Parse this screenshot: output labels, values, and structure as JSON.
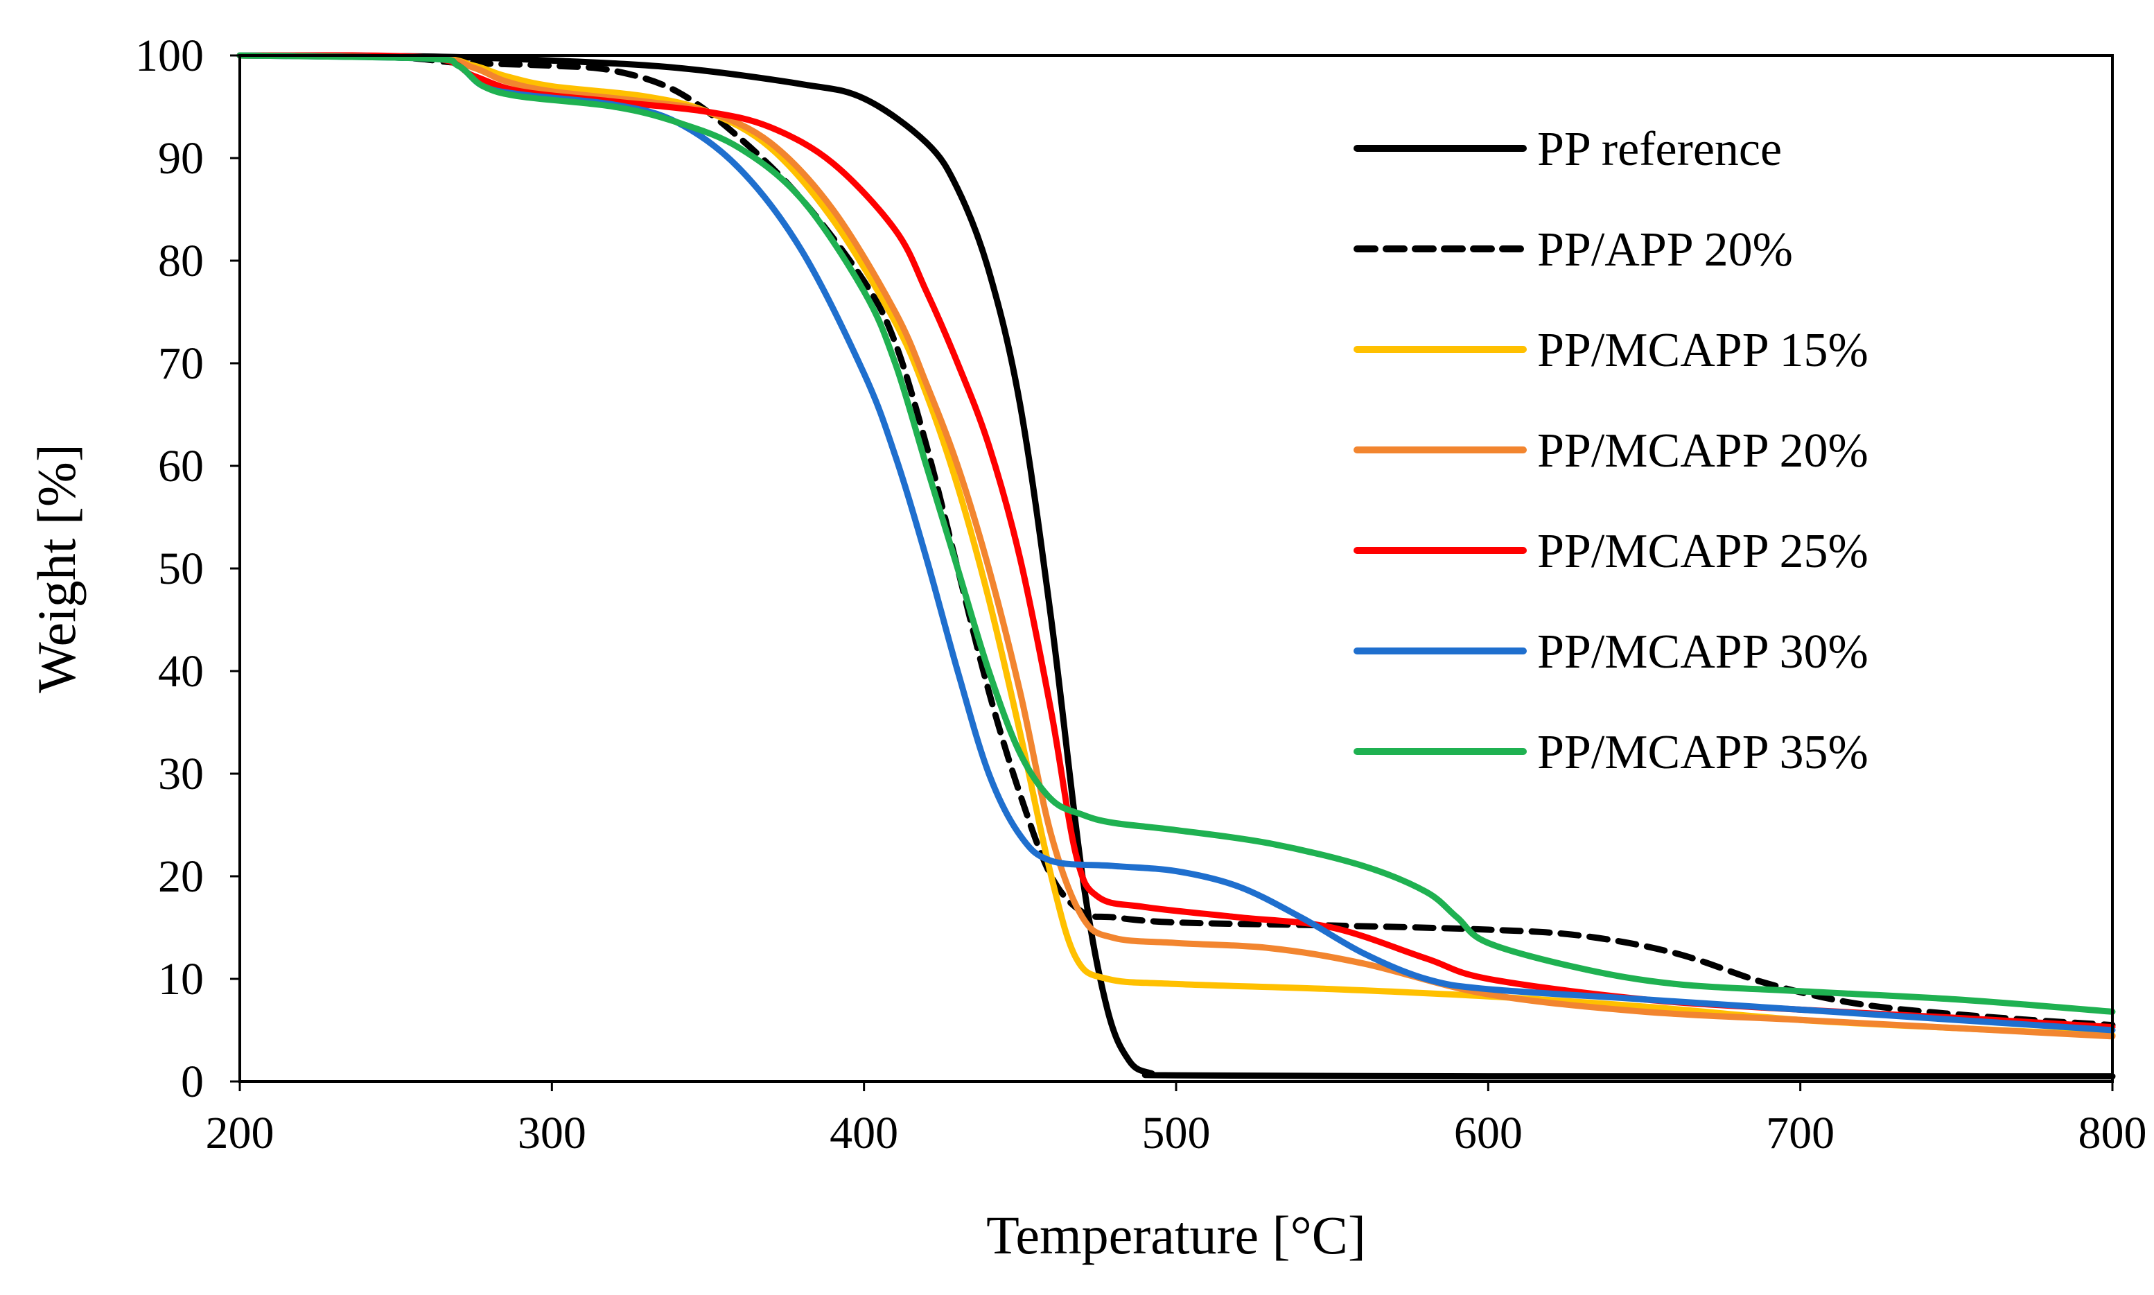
{
  "chart_data": {
    "type": "line",
    "title": "",
    "xlabel": "Temperature [°C]",
    "ylabel": "Weight [%]",
    "xlim": [
      200,
      800
    ],
    "ylim": [
      0,
      100
    ],
    "xticks": [
      200,
      300,
      400,
      500,
      600,
      700,
      800
    ],
    "yticks": [
      0,
      10,
      20,
      30,
      40,
      50,
      60,
      70,
      80,
      90,
      100
    ],
    "grid": false,
    "legend_position": "top-right",
    "series": [
      {
        "name": "PP reference",
        "color": "#000000",
        "dash": "solid",
        "points": [
          [
            200,
            100
          ],
          [
            260,
            99.9
          ],
          [
            300,
            99.5
          ],
          [
            340,
            98.8
          ],
          [
            380,
            97.2
          ],
          [
            400,
            95.8
          ],
          [
            420,
            91.5
          ],
          [
            430,
            87
          ],
          [
            440,
            79
          ],
          [
            450,
            66
          ],
          [
            460,
            45
          ],
          [
            470,
            20
          ],
          [
            478,
            7
          ],
          [
            485,
            2
          ],
          [
            492,
            0.8
          ],
          [
            500,
            0.6
          ],
          [
            600,
            0.5
          ],
          [
            700,
            0.5
          ],
          [
            800,
            0.5
          ]
        ]
      },
      {
        "name": "PP/APP 20%",
        "color": "#000000",
        "dash": "dashed",
        "points": [
          [
            200,
            100
          ],
          [
            250,
            99.8
          ],
          [
            270,
            99.3
          ],
          [
            300,
            99
          ],
          [
            320,
            98.5
          ],
          [
            340,
            96.5
          ],
          [
            360,
            92
          ],
          [
            380,
            86
          ],
          [
            400,
            78
          ],
          [
            410,
            72
          ],
          [
            420,
            62
          ],
          [
            430,
            50
          ],
          [
            440,
            38
          ],
          [
            450,
            28
          ],
          [
            460,
            20
          ],
          [
            470,
            16.5
          ],
          [
            480,
            16
          ],
          [
            500,
            15.5
          ],
          [
            550,
            15.2
          ],
          [
            600,
            14.8
          ],
          [
            630,
            14.2
          ],
          [
            660,
            12.5
          ],
          [
            690,
            9.5
          ],
          [
            720,
            7.5
          ],
          [
            760,
            6.3
          ],
          [
            800,
            5.5
          ]
        ]
      },
      {
        "name": "PP/MCAPP 15%",
        "color": "#ffc000",
        "dash": "solid",
        "points": [
          [
            200,
            100
          ],
          [
            260,
            99.8
          ],
          [
            275,
            99
          ],
          [
            285,
            98
          ],
          [
            300,
            97
          ],
          [
            330,
            96
          ],
          [
            350,
            94.5
          ],
          [
            370,
            91
          ],
          [
            390,
            84
          ],
          [
            410,
            74
          ],
          [
            420,
            67
          ],
          [
            430,
            58
          ],
          [
            440,
            47
          ],
          [
            450,
            34
          ],
          [
            460,
            20
          ],
          [
            468,
            12
          ],
          [
            478,
            10
          ],
          [
            500,
            9.5
          ],
          [
            550,
            9
          ],
          [
            600,
            8.3
          ],
          [
            650,
            7.3
          ],
          [
            700,
            6
          ],
          [
            750,
            5.2
          ],
          [
            800,
            4.5
          ]
        ]
      },
      {
        "name": "PP/MCAPP 20%",
        "color": "#f2852f",
        "dash": "solid",
        "points": [
          [
            200,
            100
          ],
          [
            260,
            99.8
          ],
          [
            275,
            98.8
          ],
          [
            285,
            97.5
          ],
          [
            300,
            96.5
          ],
          [
            330,
            95.5
          ],
          [
            350,
            94.5
          ],
          [
            370,
            91.5
          ],
          [
            390,
            85
          ],
          [
            410,
            75
          ],
          [
            420,
            68
          ],
          [
            430,
            60
          ],
          [
            440,
            50
          ],
          [
            450,
            38
          ],
          [
            460,
            24
          ],
          [
            470,
            16
          ],
          [
            480,
            14
          ],
          [
            500,
            13.5
          ],
          [
            530,
            13
          ],
          [
            560,
            11.5
          ],
          [
            600,
            8.5
          ],
          [
            650,
            6.8
          ],
          [
            700,
            6
          ],
          [
            750,
            5.2
          ],
          [
            800,
            4.4
          ]
        ]
      },
      {
        "name": "PP/MCAPP 25%",
        "color": "#ff0000",
        "dash": "solid",
        "points": [
          [
            200,
            100
          ],
          [
            260,
            99.8
          ],
          [
            275,
            98
          ],
          [
            290,
            96.5
          ],
          [
            320,
            95.5
          ],
          [
            350,
            94.5
          ],
          [
            370,
            93
          ],
          [
            390,
            89.5
          ],
          [
            410,
            83
          ],
          [
            420,
            77
          ],
          [
            430,
            70
          ],
          [
            440,
            62
          ],
          [
            450,
            51
          ],
          [
            460,
            36
          ],
          [
            468,
            22
          ],
          [
            475,
            18
          ],
          [
            490,
            17
          ],
          [
            520,
            16
          ],
          [
            550,
            15
          ],
          [
            580,
            12
          ],
          [
            600,
            10
          ],
          [
            650,
            8
          ],
          [
            700,
            7
          ],
          [
            750,
            6.2
          ],
          [
            800,
            5.3
          ]
        ]
      },
      {
        "name": "PP/MCAPP 30%",
        "color": "#1f6fce",
        "dash": "solid",
        "points": [
          [
            200,
            100
          ],
          [
            260,
            99.7
          ],
          [
            270,
            99
          ],
          [
            278,
            97
          ],
          [
            290,
            96.2
          ],
          [
            320,
            95.2
          ],
          [
            340,
            93.5
          ],
          [
            360,
            89
          ],
          [
            380,
            81
          ],
          [
            400,
            69
          ],
          [
            410,
            61
          ],
          [
            420,
            51
          ],
          [
            430,
            40
          ],
          [
            440,
            30
          ],
          [
            450,
            24
          ],
          [
            460,
            21.5
          ],
          [
            480,
            21
          ],
          [
            500,
            20.5
          ],
          [
            520,
            19
          ],
          [
            540,
            16
          ],
          [
            560,
            12.5
          ],
          [
            580,
            10
          ],
          [
            600,
            9
          ],
          [
            650,
            8
          ],
          [
            700,
            7
          ],
          [
            750,
            6
          ],
          [
            800,
            5
          ]
        ]
      },
      {
        "name": "PP/MCAPP 35%",
        "color": "#1fb151",
        "dash": "solid",
        "points": [
          [
            200,
            100
          ],
          [
            260,
            99.7
          ],
          [
            270,
            99
          ],
          [
            278,
            97
          ],
          [
            290,
            96
          ],
          [
            320,
            95
          ],
          [
            340,
            93.5
          ],
          [
            360,
            91
          ],
          [
            380,
            86
          ],
          [
            400,
            77
          ],
          [
            410,
            70
          ],
          [
            420,
            60
          ],
          [
            430,
            50
          ],
          [
            440,
            40
          ],
          [
            450,
            32
          ],
          [
            460,
            27.5
          ],
          [
            470,
            26
          ],
          [
            480,
            25.2
          ],
          [
            500,
            24.5
          ],
          [
            530,
            23.2
          ],
          [
            560,
            21
          ],
          [
            580,
            18.5
          ],
          [
            590,
            16
          ],
          [
            600,
            13.5
          ],
          [
            630,
            11
          ],
          [
            660,
            9.5
          ],
          [
            700,
            8.8
          ],
          [
            750,
            8
          ],
          [
            800,
            6.8
          ]
        ]
      }
    ]
  }
}
